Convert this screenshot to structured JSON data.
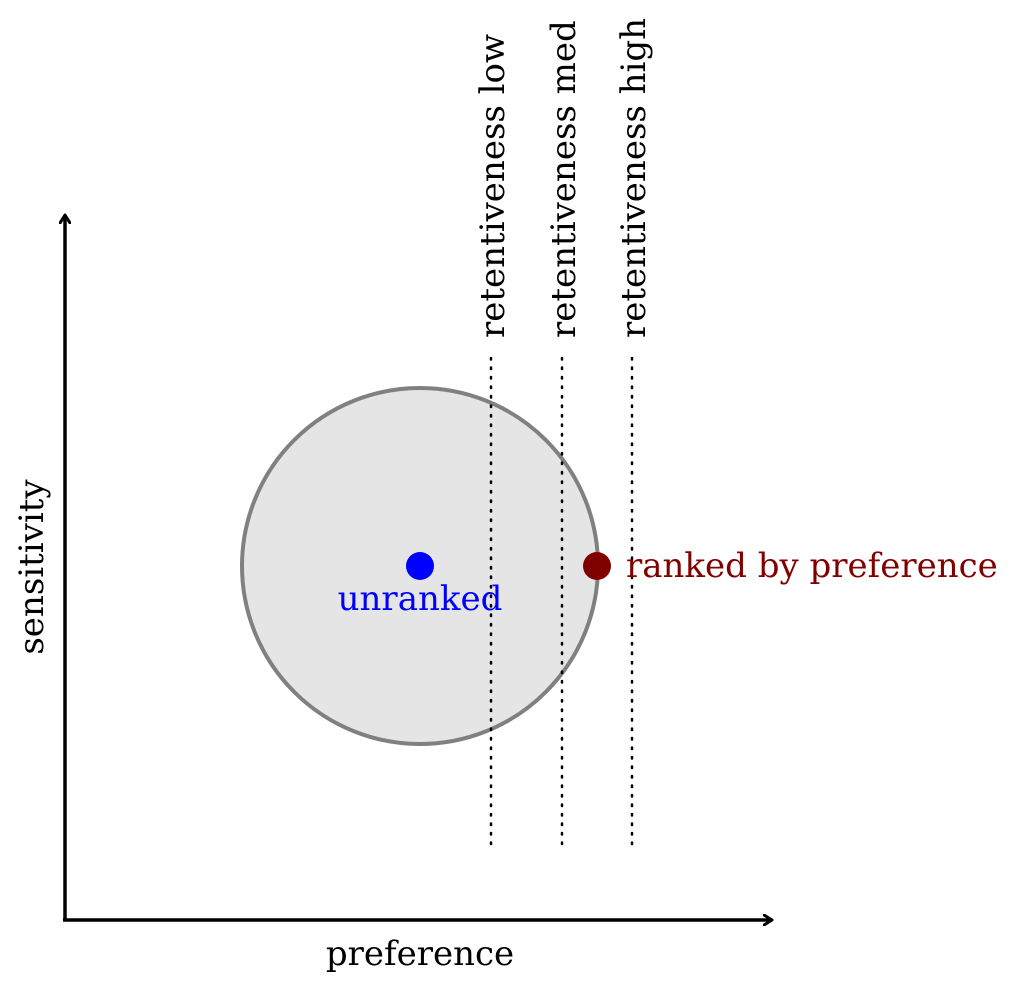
{
  "axes": {
    "x_label": "preference",
    "y_label": "sensitivity"
  },
  "thresholds": [
    {
      "label": "retentiveness low"
    },
    {
      "label": "retentiveness med"
    },
    {
      "label": "retentiveness high"
    }
  ],
  "points": {
    "unranked": {
      "label": "unranked",
      "color": "#0000ff"
    },
    "ranked": {
      "label": "ranked by preference",
      "color": "#800000"
    }
  },
  "colors": {
    "axis": "#000000",
    "region_fill": "#e5e5e5",
    "region_stroke": "#808080"
  }
}
